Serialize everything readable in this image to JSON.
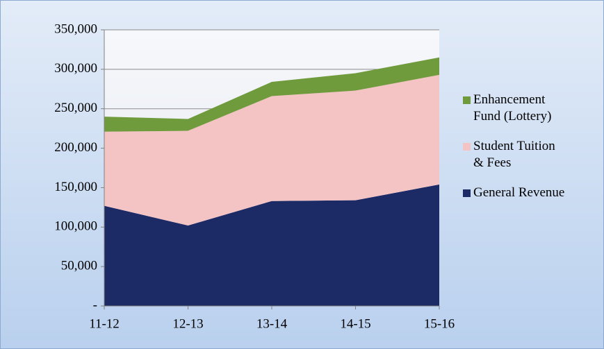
{
  "chart_data": {
    "type": "area",
    "categories": [
      "11-12",
      "12-13",
      "13-14",
      "14-15",
      "15-16"
    ],
    "series": [
      {
        "name": "General Revenue",
        "color": "#1c2a66",
        "values": [
          127000,
          102000,
          133000,
          134000,
          154000
        ]
      },
      {
        "name": "Student Tuition & Fees",
        "color": "#f4c3c4",
        "values": [
          94000,
          120000,
          133000,
          139000,
          139000
        ]
      },
      {
        "name": "Enhancement Fund (Lottery)",
        "color": "#6f9b3c",
        "values": [
          19000,
          15000,
          18000,
          22000,
          22000
        ]
      }
    ],
    "stacked": true,
    "ylim": [
      0,
      350000
    ],
    "yticks": [
      {
        "value": 0,
        "label": "-"
      },
      {
        "value": 50000,
        "label": "50,000"
      },
      {
        "value": 100000,
        "label": "100,000"
      },
      {
        "value": 150000,
        "label": "150,000"
      },
      {
        "value": 200000,
        "label": "200,000"
      },
      {
        "value": 250000,
        "label": "250,000"
      },
      {
        "value": 300000,
        "label": "300,000"
      },
      {
        "value": 350000,
        "label": "350,000"
      }
    ],
    "grid": true,
    "legend": "right"
  }
}
